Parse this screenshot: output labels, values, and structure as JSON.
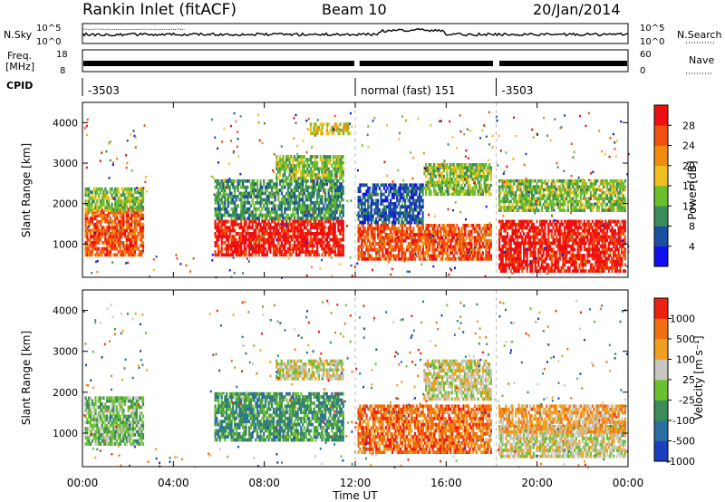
{
  "header": {
    "station": "Rankin Inlet (fitACF)",
    "beam": "Beam 10",
    "date": "20/Jan/2014"
  },
  "noise_panel": {
    "left_label": "N.Sky",
    "right_label": "N.Search",
    "left_ticks": [
      "10^5",
      "10^0"
    ],
    "right_ticks": [
      "10^5",
      "10^0"
    ]
  },
  "freq_panel": {
    "left_label_1": "Freq.",
    "left_label_2": "[MHz]",
    "right_label": "Nave",
    "left_ticks": [
      "18",
      "8"
    ],
    "right_ticks": [
      "60",
      "0"
    ]
  },
  "cpid": {
    "label": "CPID",
    "segments": [
      {
        "text": "-3503",
        "start": 0,
        "end": 12
      },
      {
        "text": "normal (fast) 151",
        "start": 12,
        "end": 18.2
      },
      {
        "text": "-3503",
        "start": 18.2,
        "end": 24
      }
    ]
  },
  "x_axis": {
    "title": "Time UT",
    "ticks": [
      "00:00",
      "04:00",
      "08:00",
      "12:00",
      "16:00",
      "20:00",
      "00:00"
    ]
  },
  "power_panel": {
    "ylabel": "Slant Range [km]",
    "yticks": [
      "1000",
      "2000",
      "3000",
      "4000"
    ],
    "colorbar_title": "Power [dB]",
    "colorbar_ticks": [
      "4",
      "8",
      "12",
      "16",
      "20",
      "24",
      "28"
    ],
    "colors": [
      "#1010ee",
      "#1a4fa0",
      "#3c8c5a",
      "#6cbf2c",
      "#f0c020",
      "#f08c10",
      "#f05010",
      "#ee1010"
    ]
  },
  "velocity_panel": {
    "ylabel": "Slant Range [km]",
    "yticks": [
      "1000",
      "2000",
      "3000",
      "4000"
    ],
    "colorbar_title": "Velocity [m s⁻¹]",
    "colorbar_ticks": [
      "1000",
      "500",
      "100",
      "25",
      "-25",
      "-100",
      "-500",
      "-1000"
    ],
    "colors": [
      "#1a40c0",
      "#2a70a0",
      "#3c8c5a",
      "#6cc030",
      "#c8c8c0",
      "#f0a020",
      "#f07010",
      "#ee2010"
    ]
  },
  "chart_data": {
    "type": "heatmap",
    "title": "Rankin Inlet (fitACF)",
    "subtitle": "Beam 10",
    "xlabel": "Time UT",
    "ylabel": "Slant Range [km]",
    "x_range_hours": [
      0,
      24
    ],
    "ylim_km": [
      180,
      4500
    ],
    "panels": [
      {
        "name": "Power",
        "colorbar_label": "Power [dB]",
        "colorbar_ticks": [
          4,
          8,
          12,
          16,
          20,
          24,
          28
        ],
        "regions": [
          {
            "t": [
              0.1,
              2.7
            ],
            "r": [
              700,
              1900
            ],
            "level": 6
          },
          {
            "t": [
              0.1,
              2.7
            ],
            "r": [
              1800,
              2400
            ],
            "level": 3
          },
          {
            "t": [
              5.8,
              11.5
            ],
            "r": [
              700,
              1600
            ],
            "level": 7
          },
          {
            "t": [
              5.8,
              11.5
            ],
            "r": [
              1600,
              2600
            ],
            "level": 2
          },
          {
            "t": [
              8.5,
              11.5
            ],
            "r": [
              2600,
              3200
            ],
            "level": 3
          },
          {
            "t": [
              10.0,
              11.8
            ],
            "r": [
              3700,
              4000
            ],
            "level": 4
          },
          {
            "t": [
              12.1,
              18.0
            ],
            "r": [
              600,
              1500
            ],
            "level": 6
          },
          {
            "t": [
              12.1,
              15.0
            ],
            "r": [
              1500,
              2500
            ],
            "level": 1
          },
          {
            "t": [
              15.0,
              18.0
            ],
            "r": [
              2200,
              3000
            ],
            "level": 3
          },
          {
            "t": [
              18.3,
              23.9
            ],
            "r": [
              300,
              1600
            ],
            "level": 7
          },
          {
            "t": [
              18.3,
              23.9
            ],
            "r": [
              1800,
              2600
            ],
            "level": 3
          }
        ]
      },
      {
        "name": "Velocity",
        "colorbar_label": "Velocity [m s⁻¹]",
        "colorbar_ticks": [
          1000,
          500,
          100,
          25,
          -25,
          -100,
          -500,
          -1000
        ],
        "regions": [
          {
            "t": [
              0.1,
              2.7
            ],
            "r": [
              700,
              1900
            ],
            "level": 3
          },
          {
            "t": [
              5.8,
              11.5
            ],
            "r": [
              800,
              2000
            ],
            "level": 2
          },
          {
            "t": [
              8.5,
              11.5
            ],
            "r": [
              2300,
              2800
            ],
            "level": 4
          },
          {
            "t": [
              12.1,
              18.0
            ],
            "r": [
              500,
              1700
            ],
            "level": 6
          },
          {
            "t": [
              15.0,
              18.0
            ],
            "r": [
              1800,
              2800
            ],
            "level": 4
          },
          {
            "t": [
              18.3,
              23.9
            ],
            "r": [
              400,
              1200
            ],
            "level": 4
          },
          {
            "t": [
              18.3,
              23.9
            ],
            "r": [
              1000,
              1700
            ],
            "level": 5
          }
        ]
      }
    ]
  }
}
